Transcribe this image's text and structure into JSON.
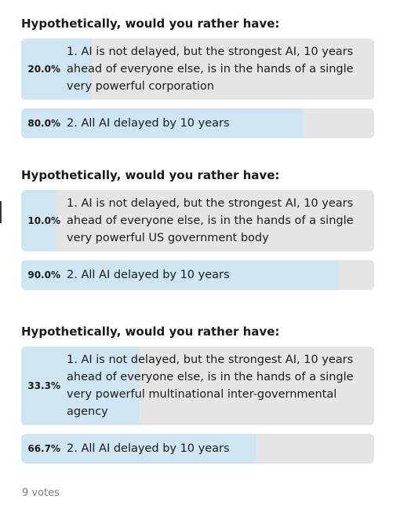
{
  "polls": [
    {
      "title": "Hypothetically, would you rather have:",
      "options": [
        {
          "label": "1. AI is not delayed, but the strongest AI, 10 years ahead of everyone else, is in the hands of a single very powerful corporation",
          "percent_text": "20.0%",
          "fraction": 0.2
        },
        {
          "label": "2. All AI delayed by 10 years",
          "percent_text": "80.0%",
          "fraction": 0.8
        }
      ]
    },
    {
      "title": "Hypothetically, would you rather have:",
      "options": [
        {
          "label": "1. AI is not delayed, but the strongest AI, 10 years ahead of everyone else, is in the hands of a single very powerful US government body",
          "percent_text": "10.0%",
          "fraction": 0.1
        },
        {
          "label": "2. All AI delayed by 10 years",
          "percent_text": "90.0%",
          "fraction": 0.9
        }
      ]
    },
    {
      "title": "Hypothetically, would you rather have:",
      "options": [
        {
          "label": "1. AI is not delayed, but the strongest AI, 10 years ahead of everyone else, is in the hands of a single very powerful multinational inter-governmental agency",
          "percent_text": "33.3%",
          "fraction": 0.333
        },
        {
          "label": "2. All AI delayed by 10 years",
          "percent_text": "66.7%",
          "fraction": 0.667
        }
      ]
    }
  ],
  "footer": {
    "votes_text": "9 votes"
  },
  "colors": {
    "bar_fill": "#cfe5f2",
    "bar_track": "#e5e5e5",
    "muted_text": "#7a7a7a"
  }
}
